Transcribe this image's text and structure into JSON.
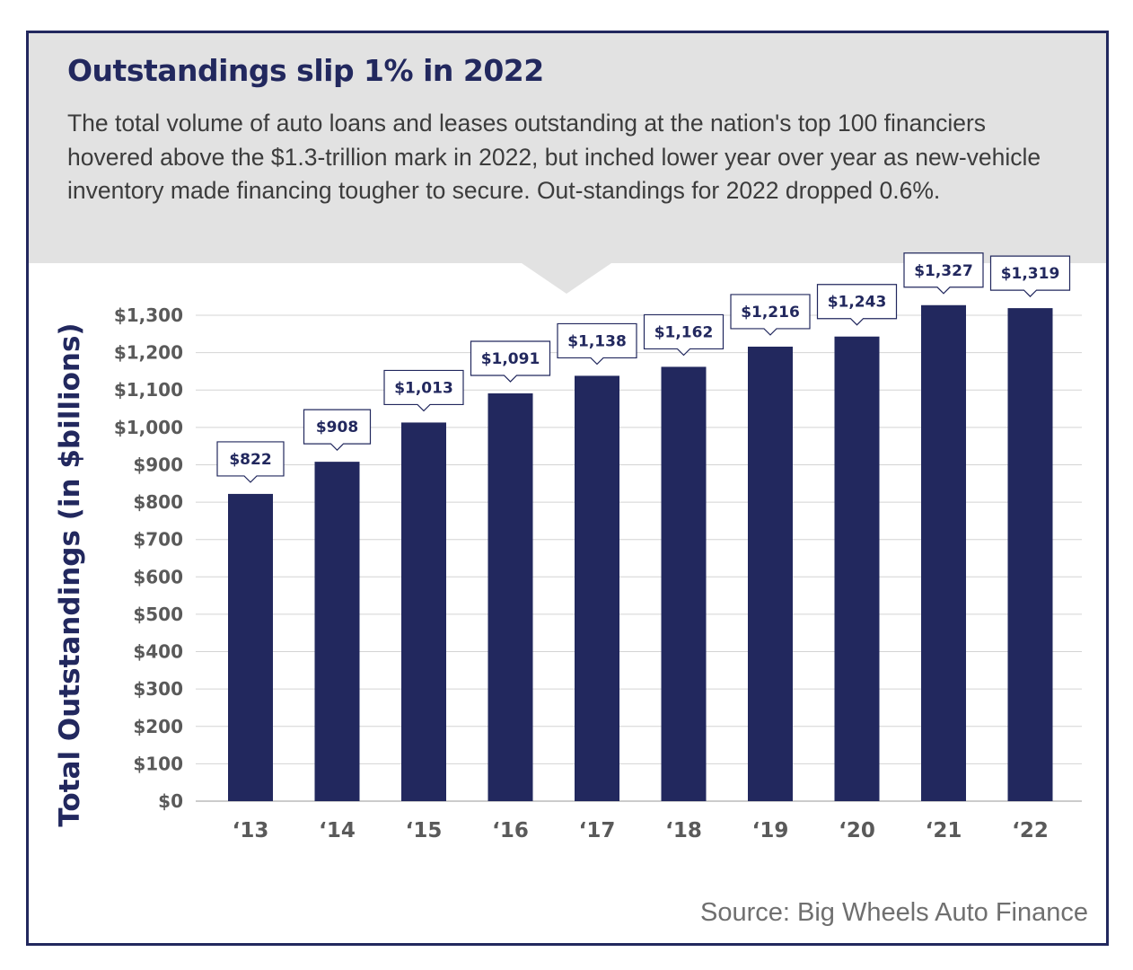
{
  "title": "Outstandings slip 1% in 2022",
  "subtitle": "The total volume of auto loans and leases outstanding at the nation's top 100 financiers hovered above the $1.3-trillion mark in 2022, but inched lower year over year as new-vehicle inventory made financing tougher to secure. Out-standings for 2022 dropped 0.6%.",
  "source": "Source: Big Wheels Auto Finance",
  "colors": {
    "bar": "#22285e",
    "header_bg": "#e2e2e2",
    "frame": "#22285e",
    "grid": "#d4d4d4"
  },
  "chart_data": {
    "type": "bar",
    "categories": [
      "‘13",
      "‘14",
      "‘15",
      "‘16",
      "‘17",
      "‘18",
      "‘19",
      "‘20",
      "‘21",
      "‘22"
    ],
    "values": [
      822,
      908,
      1013,
      1091,
      1138,
      1162,
      1216,
      1243,
      1327,
      1319
    ],
    "data_labels": [
      "$822",
      "$908",
      "$1,013",
      "$1,091",
      "$1,138",
      "$1,162",
      "$1,216",
      "$1,243",
      "$1,327",
      "$1,319"
    ],
    "ylabel": "Total Outstandings (in $billions)",
    "xlabel": "",
    "ylim": [
      0,
      1300
    ],
    "yticks": [
      0,
      100,
      200,
      300,
      400,
      500,
      600,
      700,
      800,
      900,
      1000,
      1100,
      1200,
      1300
    ],
    "ytick_labels": [
      "$0",
      "$100",
      "$200",
      "$300",
      "$400",
      "$500",
      "$600",
      "$700",
      "$800",
      "$900",
      "$1,000",
      "$1,100",
      "$1,200",
      "$1,300"
    ],
    "grid": true,
    "legend": "none"
  }
}
